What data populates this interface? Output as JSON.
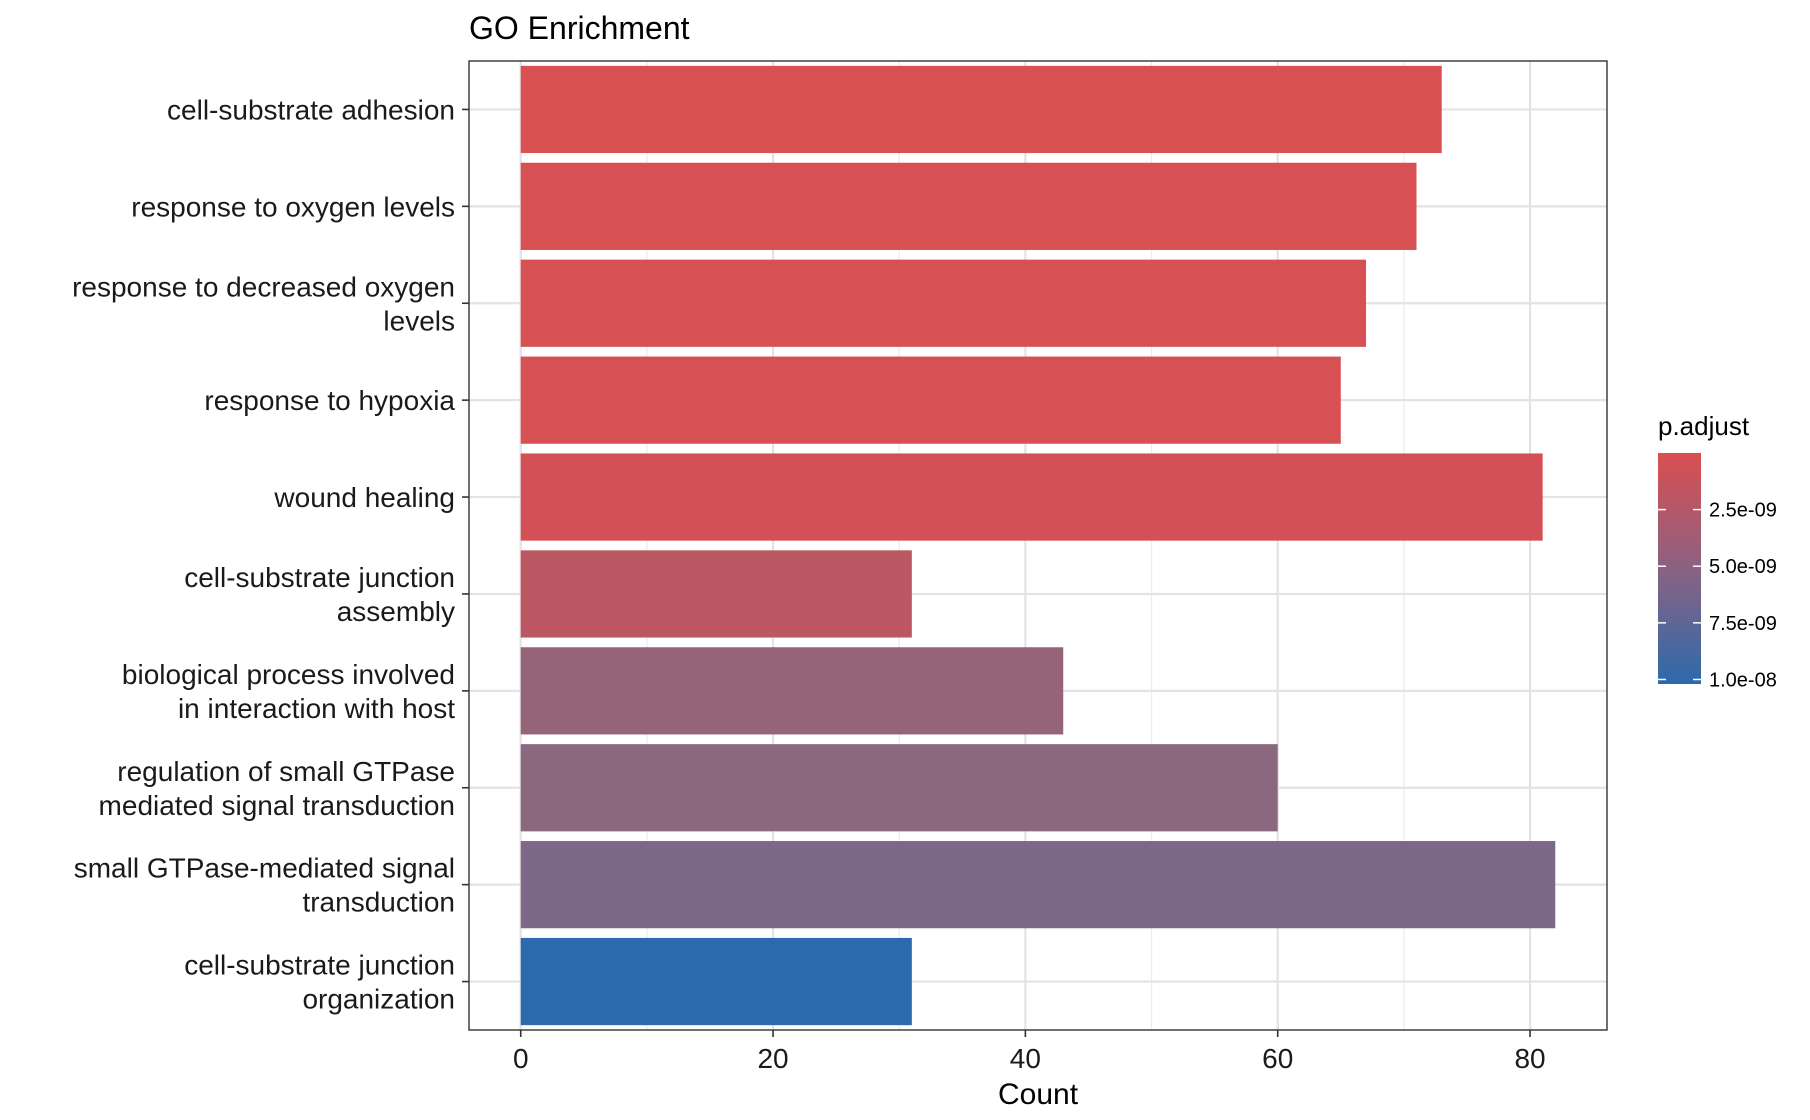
{
  "chart_data": {
    "type": "bar",
    "orientation": "horizontal",
    "title": "GO Enrichment",
    "xlabel": "Count",
    "ylabel": "",
    "xlim": [
      -4.1,
      86.1
    ],
    "xticks": [
      0,
      20,
      40,
      60,
      80
    ],
    "grid": true,
    "categories": [
      "cell-substrate adhesion",
      "response to oxygen levels",
      "response to decreased oxygen levels",
      "response to hypoxia",
      "wound healing",
      "cell-substrate junction assembly",
      "biological process involved in interaction with host",
      "regulation of small GTPase mediated signal transduction",
      "small GTPase-mediated signal transduction",
      "cell-substrate junction organization"
    ],
    "category_lines": [
      [
        "cell-substrate adhesion"
      ],
      [
        "response to oxygen levels"
      ],
      [
        "response to decreased oxygen",
        "levels"
      ],
      [
        "response to hypoxia"
      ],
      [
        "wound healing"
      ],
      [
        "cell-substrate junction",
        "assembly"
      ],
      [
        "biological process involved",
        "in interaction with host"
      ],
      [
        "regulation of small GTPase",
        "mediated signal transduction"
      ],
      [
        "small GTPase-mediated signal",
        "transduction"
      ],
      [
        "cell-substrate junction",
        "organization"
      ]
    ],
    "values": [
      73,
      71,
      67,
      65,
      81,
      31,
      43,
      60,
      82,
      31
    ],
    "p_adjust": [
      2e-11,
      3e-11,
      5e-11,
      6e-11,
      1.5e-10,
      1.6e-09,
      4.6e-09,
      5.2e-09,
      6.2e-09,
      1.02e-08
    ],
    "bar_colors": [
      "#D85052",
      "#D75053",
      "#D65054",
      "#D65054",
      "#D35056",
      "#BC5863",
      "#956479",
      "#8A687F",
      "#7C6887",
      "#2B6AAC"
    ],
    "legend": {
      "title": "p.adjust",
      "position": "right",
      "color_low": "#D94F51",
      "color_mid": "#8B6282",
      "color_high": "#2C6AAC",
      "range": [
        1.4e-12,
        1.02e-08
      ],
      "breaks": [
        2.5e-09,
        5e-09,
        7.5e-09,
        1e-08
      ],
      "break_labels": [
        "2.5e-09",
        "5.0e-09",
        "7.5e-09",
        "1.0e-08"
      ]
    }
  }
}
